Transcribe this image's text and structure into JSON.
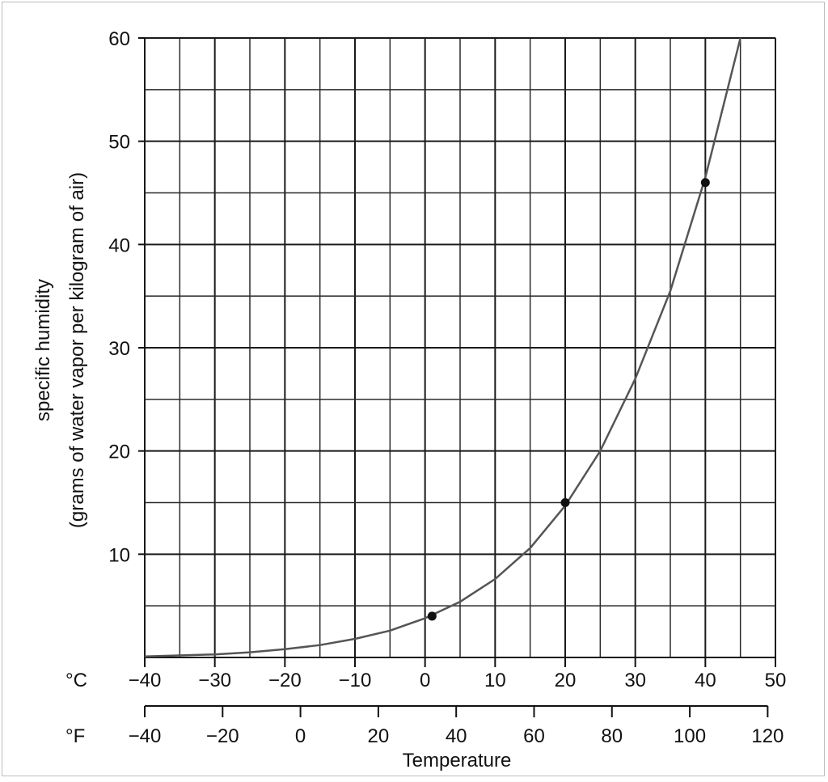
{
  "chart_data": {
    "type": "line",
    "ylabel_lines": [
      "specific humidity",
      "(grams of water vapor per kilogram of air)"
    ],
    "xlabel": "Temperature",
    "celsius_unit": "°C",
    "fahrenheit_unit": "°F",
    "ylim": [
      0,
      60
    ],
    "y_ticks": [
      10,
      20,
      30,
      40,
      50,
      60
    ],
    "y_ticks_labels": [
      "10",
      "20",
      "30",
      "40",
      "50",
      "60"
    ],
    "xlim_celsius": [
      -40,
      50
    ],
    "x_ticks_celsius": [
      -40,
      -30,
      -20,
      -10,
      0,
      10,
      20,
      30,
      40,
      50
    ],
    "x_ticks_celsius_labels": [
      "−40",
      "−30",
      "−20",
      "−10",
      "0",
      "10",
      "20",
      "30",
      "40",
      "50"
    ],
    "x_ticks_fahrenheit": [
      -40,
      -20,
      0,
      20,
      40,
      60,
      80,
      100,
      120
    ],
    "x_ticks_fahrenheit_labels": [
      "−40",
      "−20",
      "0",
      "20",
      "40",
      "60",
      "80",
      "100",
      "120"
    ],
    "grid": true,
    "series": [
      {
        "x": [
          -40,
          -30,
          -25,
          -20,
          -15,
          -10,
          -5,
          0,
          5,
          10,
          15,
          20,
          25,
          30,
          35,
          40,
          45
        ],
        "y": [
          0.1,
          0.3,
          0.5,
          0.8,
          1.2,
          1.8,
          2.6,
          3.8,
          5.4,
          7.6,
          10.6,
          14.7,
          20.0,
          27.0,
          35.5,
          46.5,
          60
        ]
      }
    ],
    "points": [
      {
        "x": 1,
        "y": 4
      },
      {
        "x": 20,
        "y": 15
      },
      {
        "x": 40,
        "y": 46
      }
    ],
    "colors": {
      "curve": "#555555",
      "grid": "#1a1a1a",
      "points": "#111111"
    }
  }
}
